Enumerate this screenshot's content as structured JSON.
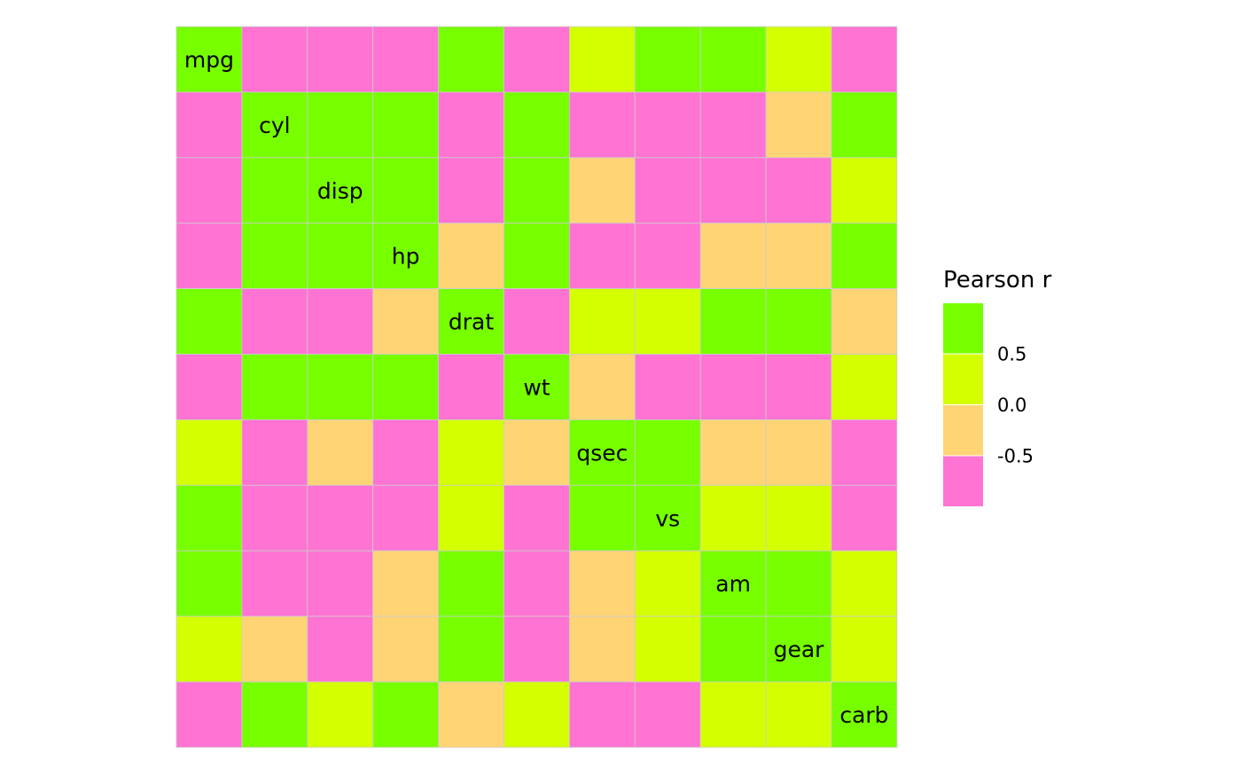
{
  "chart_data": {
    "type": "heatmap",
    "title": "",
    "variables": [
      "mpg",
      "cyl",
      "disp",
      "hp",
      "drat",
      "wt",
      "qsec",
      "vs",
      "am",
      "gear",
      "carb"
    ],
    "values": [
      [
        1.0,
        -0.852,
        -0.848,
        -0.776,
        0.681,
        -0.868,
        0.419,
        0.664,
        0.6,
        0.48,
        -0.551
      ],
      [
        -0.852,
        1.0,
        0.902,
        0.832,
        -0.7,
        0.782,
        -0.591,
        -0.811,
        -0.523,
        -0.493,
        0.527
      ],
      [
        -0.848,
        0.902,
        1.0,
        0.791,
        -0.71,
        0.888,
        -0.434,
        -0.71,
        -0.591,
        -0.556,
        0.395
      ],
      [
        -0.776,
        0.832,
        0.791,
        1.0,
        -0.449,
        0.659,
        -0.708,
        -0.723,
        -0.243,
        -0.126,
        0.75
      ],
      [
        0.681,
        -0.7,
        -0.71,
        -0.449,
        1.0,
        -0.712,
        0.091,
        0.44,
        0.713,
        0.7,
        -0.091
      ],
      [
        -0.868,
        0.782,
        0.888,
        0.659,
        -0.712,
        1.0,
        -0.175,
        -0.555,
        -0.692,
        -0.583,
        0.428
      ],
      [
        0.419,
        -0.591,
        -0.434,
        -0.708,
        0.091,
        -0.175,
        1.0,
        0.745,
        -0.23,
        -0.213,
        -0.656
      ],
      [
        0.664,
        -0.811,
        -0.71,
        -0.723,
        0.44,
        -0.555,
        0.745,
        1.0,
        0.168,
        0.206,
        -0.57
      ],
      [
        0.6,
        -0.523,
        -0.591,
        -0.243,
        0.713,
        -0.692,
        -0.23,
        0.168,
        1.0,
        0.794,
        0.058
      ],
      [
        0.48,
        -0.493,
        -0.556,
        -0.126,
        0.7,
        -0.583,
        -0.213,
        0.206,
        0.794,
        1.0,
        0.274
      ],
      [
        -0.551,
        0.527,
        0.395,
        0.75,
        -0.091,
        0.428,
        -0.656,
        -0.57,
        0.058,
        0.274,
        1.0
      ]
    ],
    "color_bins": [
      {
        "range": [
          -1.0,
          -0.5
        ],
        "color": "#FF73D3"
      },
      {
        "range": [
          -0.5,
          0.0
        ],
        "color": "#FFD475"
      },
      {
        "range": [
          0.0,
          0.5
        ],
        "color": "#D4FF00"
      },
      {
        "range": [
          0.5,
          1.0
        ],
        "color": "#77FF00"
      }
    ],
    "legend": {
      "title": "Pearson r",
      "ticks": [
        "0.5",
        "0.0",
        "-0.5"
      ],
      "position": "right"
    },
    "diagonal_labels": true,
    "grid_color": "#CCCCCC"
  }
}
